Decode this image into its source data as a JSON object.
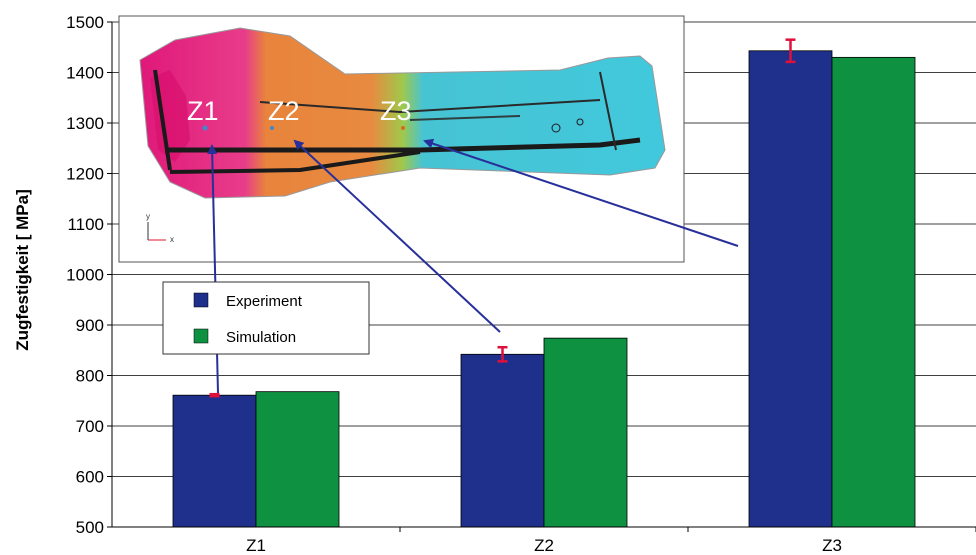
{
  "chart_data": {
    "type": "bar",
    "categories": [
      "Z1",
      "Z2",
      "Z3"
    ],
    "series": [
      {
        "name": "Experiment",
        "color": "#1f2f8c",
        "values": [
          761,
          842,
          1443
        ],
        "error": [
          2,
          14,
          22
        ]
      },
      {
        "name": "Simulation",
        "color": "#0e9140",
        "values": [
          768,
          874,
          1430
        ]
      }
    ],
    "xlabel": "",
    "ylabel": "Zugfestigkeit [ MPa]",
    "ylim": [
      500,
      1500
    ],
    "yticks": [
      500,
      600,
      700,
      800,
      900,
      1000,
      1100,
      1200,
      1300,
      1400,
      1500
    ],
    "grid": true,
    "legend_placement": "left, below inset",
    "error_bar_color": "#e0103c",
    "inset": {
      "description_icon": "fe-contour-car-part-image",
      "zone_labels": [
        "Z1",
        "Z2",
        "Z3"
      ],
      "axis_letters": [
        "y",
        "x"
      ],
      "arrow_color": "#27309a"
    }
  }
}
